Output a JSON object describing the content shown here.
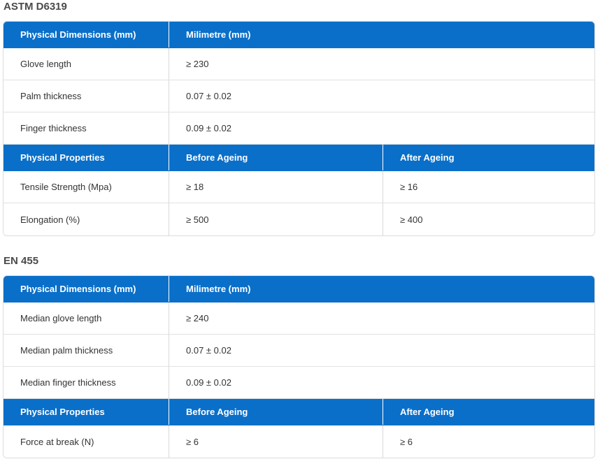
{
  "sections": [
    {
      "title": "ASTM D6319",
      "dimensions_header": [
        "Physical Dimensions (mm)",
        "Milimetre (mm)"
      ],
      "dimensions_rows": [
        [
          "Glove length",
          "≥ 230"
        ],
        [
          "Palm thickness",
          "0.07 ± 0.02"
        ],
        [
          "Finger thickness",
          "0.09 ± 0.02"
        ]
      ],
      "properties_header": [
        "Physical Properties",
        "Before Ageing",
        "After Ageing"
      ],
      "properties_rows": [
        [
          "Tensile Strength (Mpa)",
          "≥ 18",
          "≥ 16"
        ],
        [
          "Elongation (%)",
          "≥ 500",
          "≥ 400"
        ]
      ]
    },
    {
      "title": "EN 455",
      "dimensions_header": [
        "Physical Dimensions (mm)",
        "Milimetre (mm)"
      ],
      "dimensions_rows": [
        [
          "Median glove length",
          "≥ 240"
        ],
        [
          "Median palm thickness",
          "0.07 ± 0.02"
        ],
        [
          "Median finger thickness",
          "0.09 ± 0.02"
        ]
      ],
      "properties_header": [
        "Physical Properties",
        "Before Ageing",
        "After Ageing"
      ],
      "properties_rows": [
        [
          "Force at break (N)",
          "≥ 6",
          "≥ 6"
        ]
      ]
    }
  ],
  "colors": {
    "header_bg": "#0a6fc9",
    "header_text": "#ffffff",
    "title_text": "#4a4a4a"
  }
}
